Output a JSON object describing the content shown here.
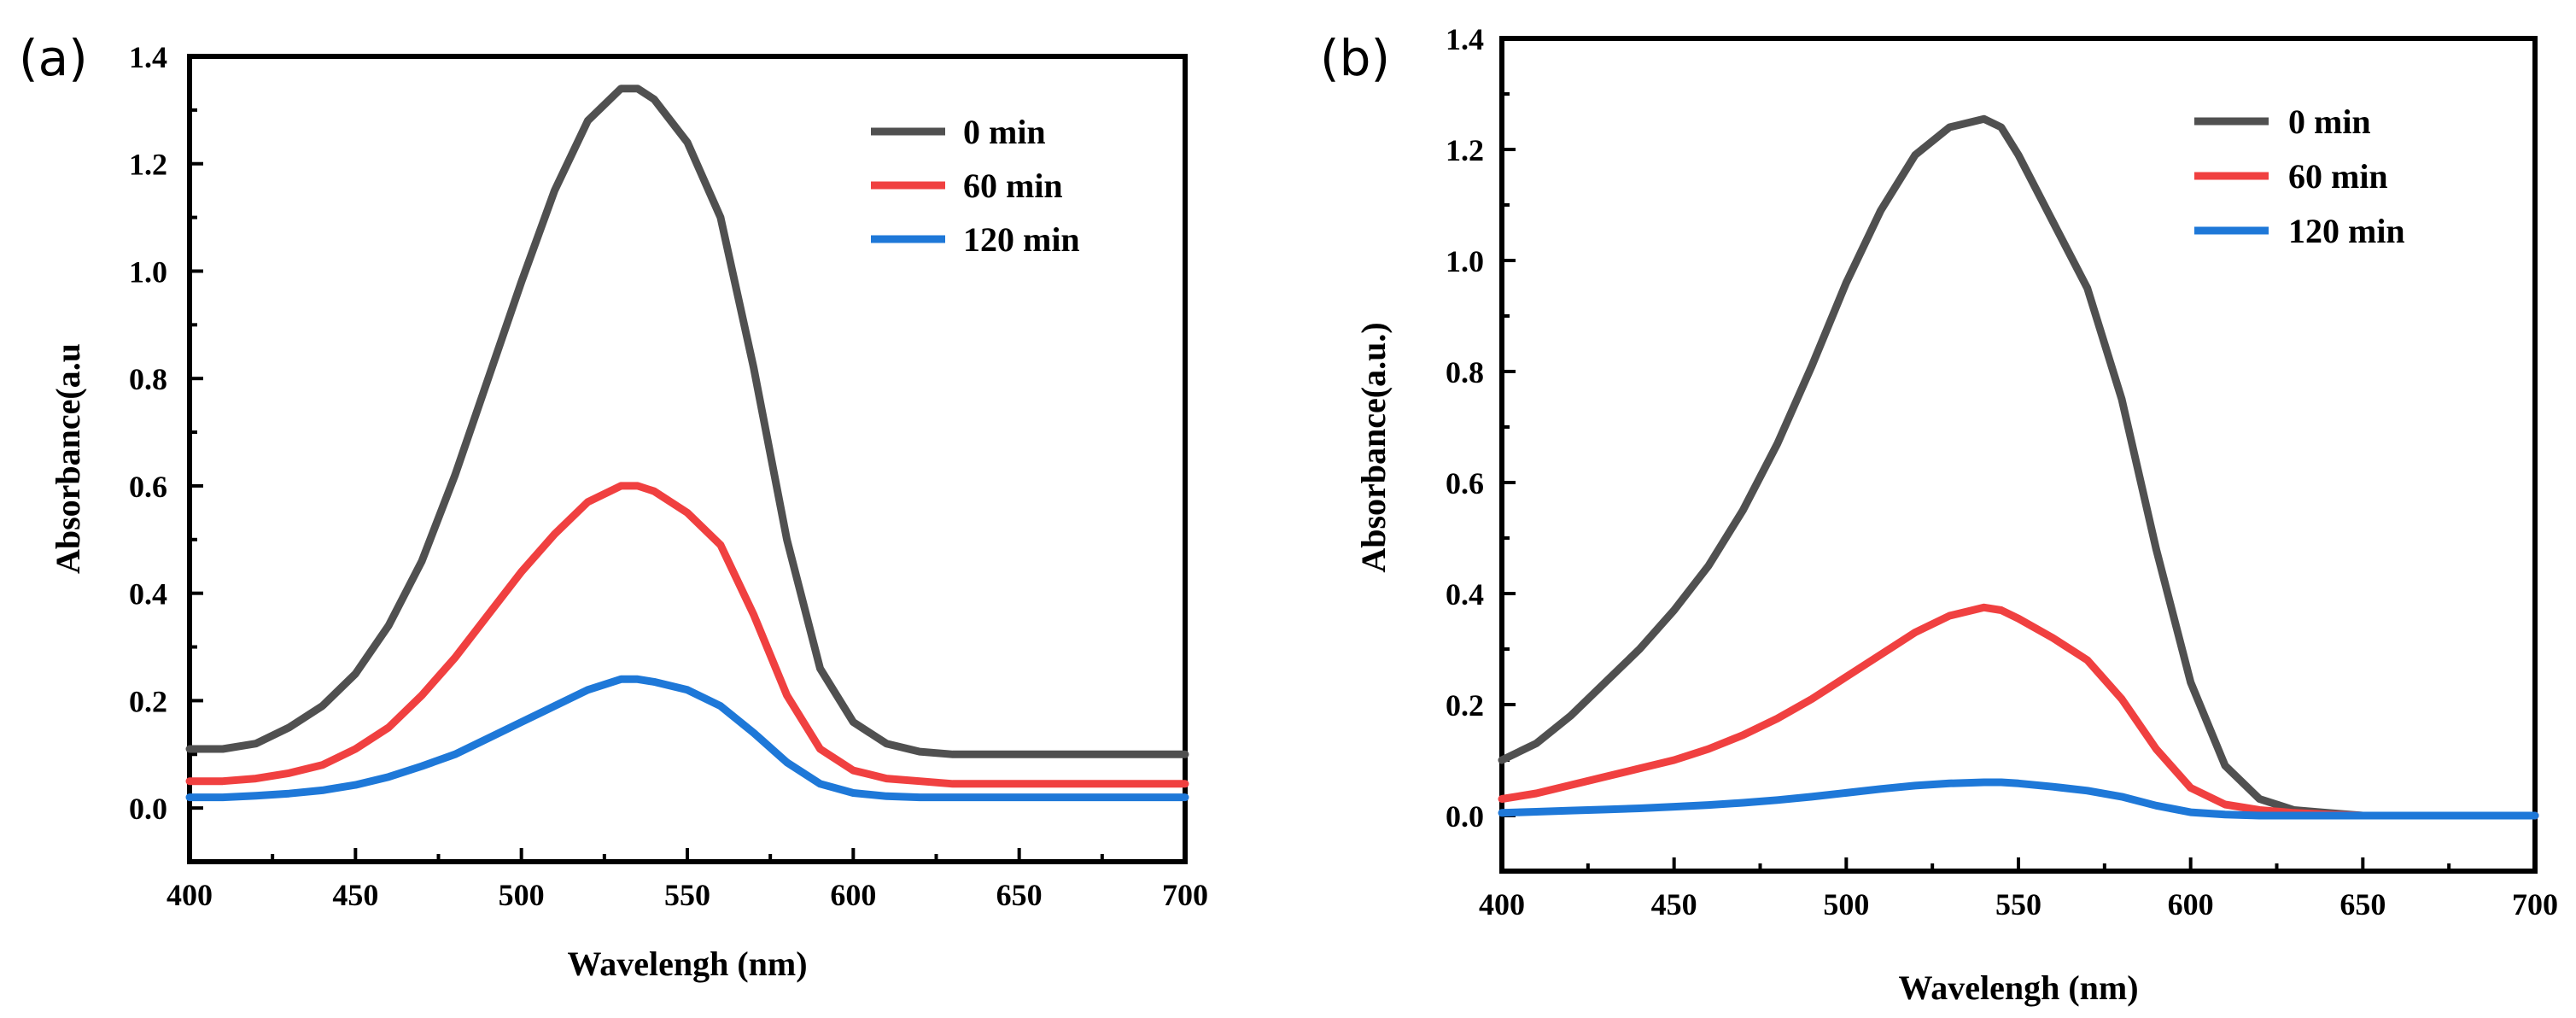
{
  "chart_data": [
    {
      "panel": "(a)",
      "type": "line",
      "xlabel": "Wavelengh (nm)",
      "ylabel": "Absorbance(a.u",
      "xlim": [
        400,
        700
      ],
      "ylim": [
        -0.1,
        1.4
      ],
      "xticks": [
        400,
        450,
        500,
        550,
        600,
        650,
        700
      ],
      "yticks": [
        "0.0",
        "0.2",
        "0.4",
        "0.6",
        "0.8",
        "1.0",
        "1.2",
        "1.4"
      ],
      "legend": "top-right",
      "series": [
        {
          "name": "0 min",
          "color": "#505050",
          "x": [
            400,
            410,
            420,
            430,
            440,
            450,
            460,
            470,
            480,
            490,
            500,
            510,
            520,
            530,
            535,
            540,
            550,
            560,
            570,
            580,
            590,
            600,
            610,
            620,
            630,
            640,
            650,
            660,
            670,
            680,
            690,
            700
          ],
          "y": [
            0.11,
            0.11,
            0.12,
            0.15,
            0.19,
            0.25,
            0.34,
            0.46,
            0.62,
            0.8,
            0.98,
            1.15,
            1.28,
            1.34,
            1.34,
            1.32,
            1.24,
            1.1,
            0.82,
            0.5,
            0.26,
            0.16,
            0.12,
            0.105,
            0.1,
            0.1,
            0.1,
            0.1,
            0.1,
            0.1,
            0.1,
            0.1
          ]
        },
        {
          "name": "60 min",
          "color": "#f04040",
          "x": [
            400,
            410,
            420,
            430,
            440,
            450,
            460,
            470,
            480,
            490,
            500,
            510,
            520,
            530,
            535,
            540,
            550,
            560,
            570,
            580,
            590,
            600,
            610,
            620,
            630,
            640,
            650,
            660,
            670,
            680,
            690,
            700
          ],
          "y": [
            0.05,
            0.05,
            0.055,
            0.065,
            0.08,
            0.11,
            0.15,
            0.21,
            0.28,
            0.36,
            0.44,
            0.51,
            0.57,
            0.6,
            0.6,
            0.59,
            0.55,
            0.49,
            0.36,
            0.21,
            0.11,
            0.07,
            0.055,
            0.05,
            0.045,
            0.045,
            0.045,
            0.045,
            0.045,
            0.045,
            0.045,
            0.045
          ]
        },
        {
          "name": "120 min",
          "color": "#1e78d8",
          "x": [
            400,
            410,
            420,
            430,
            440,
            450,
            460,
            470,
            480,
            490,
            500,
            510,
            520,
            530,
            535,
            540,
            550,
            560,
            570,
            580,
            590,
            600,
            610,
            620,
            630,
            640,
            650,
            660,
            670,
            680,
            690,
            700
          ],
          "y": [
            0.02,
            0.02,
            0.023,
            0.027,
            0.033,
            0.043,
            0.058,
            0.078,
            0.1,
            0.13,
            0.16,
            0.19,
            0.22,
            0.24,
            0.24,
            0.235,
            0.22,
            0.19,
            0.14,
            0.085,
            0.045,
            0.028,
            0.022,
            0.02,
            0.02,
            0.02,
            0.02,
            0.02,
            0.02,
            0.02,
            0.02,
            0.02
          ]
        }
      ]
    },
    {
      "panel": "(b)",
      "type": "line",
      "xlabel": "Wavelengh (nm)",
      "ylabel": "Absorbance(a.u.)",
      "xlim": [
        400,
        700
      ],
      "ylim": [
        -0.1,
        1.4
      ],
      "xticks": [
        400,
        450,
        500,
        550,
        600,
        650,
        700
      ],
      "yticks": [
        "0.0",
        "0.2",
        "0.4",
        "0.6",
        "0.8",
        "1.0",
        "1.2",
        "1.4"
      ],
      "legend": "top-right",
      "series": [
        {
          "name": "0 min",
          "color": "#505050",
          "x": [
            400,
            410,
            420,
            430,
            440,
            450,
            460,
            470,
            480,
            490,
            500,
            510,
            520,
            530,
            540,
            545,
            550,
            560,
            570,
            580,
            590,
            600,
            610,
            620,
            630,
            640,
            650,
            660,
            670,
            680,
            690,
            700
          ],
          "y": [
            0.1,
            0.13,
            0.18,
            0.24,
            0.3,
            0.37,
            0.45,
            0.55,
            0.67,
            0.81,
            0.96,
            1.09,
            1.19,
            1.24,
            1.255,
            1.24,
            1.19,
            1.07,
            0.95,
            0.75,
            0.48,
            0.24,
            0.09,
            0.03,
            0.01,
            0.005,
            0.0,
            0.0,
            0.0,
            0.0,
            0.0,
            0.0
          ]
        },
        {
          "name": "60 min",
          "color": "#f04040",
          "x": [
            400,
            410,
            420,
            430,
            440,
            450,
            460,
            470,
            480,
            490,
            500,
            510,
            520,
            530,
            540,
            545,
            550,
            560,
            570,
            580,
            590,
            600,
            610,
            620,
            630,
            640,
            650,
            660,
            670,
            680,
            690,
            700
          ],
          "y": [
            0.03,
            0.04,
            0.055,
            0.07,
            0.085,
            0.1,
            0.12,
            0.145,
            0.175,
            0.21,
            0.25,
            0.29,
            0.33,
            0.36,
            0.375,
            0.37,
            0.355,
            0.32,
            0.28,
            0.21,
            0.12,
            0.05,
            0.02,
            0.01,
            0.005,
            0.002,
            0.0,
            0.0,
            0.0,
            0.0,
            0.0,
            0.0
          ]
        },
        {
          "name": "120 min",
          "color": "#1e78d8",
          "x": [
            400,
            410,
            420,
            430,
            440,
            450,
            460,
            470,
            480,
            490,
            500,
            510,
            520,
            530,
            540,
            545,
            550,
            560,
            570,
            580,
            590,
            600,
            610,
            620,
            630,
            640,
            650,
            660,
            670,
            680,
            690,
            700
          ],
          "y": [
            0.005,
            0.007,
            0.009,
            0.011,
            0.013,
            0.016,
            0.019,
            0.023,
            0.028,
            0.034,
            0.041,
            0.048,
            0.054,
            0.058,
            0.06,
            0.06,
            0.058,
            0.052,
            0.045,
            0.034,
            0.018,
            0.006,
            0.002,
            0.0,
            0.0,
            0.0,
            0.0,
            0.0,
            0.0,
            0.0,
            0.0,
            0.0
          ]
        }
      ]
    }
  ]
}
